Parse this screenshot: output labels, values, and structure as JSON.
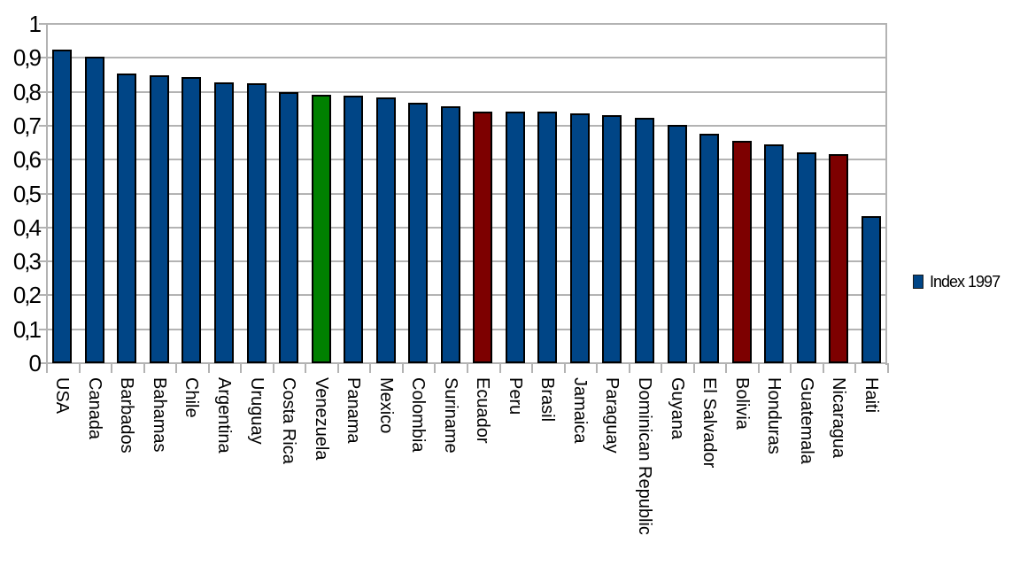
{
  "chart_data": {
    "type": "bar",
    "title": "",
    "xlabel": "",
    "ylabel": "",
    "ylim": [
      0,
      1
    ],
    "grid": "horizontal",
    "ytick_labels": [
      "0",
      "0,1",
      "0,2",
      "0,3",
      "0,4",
      "0,5",
      "0,6",
      "0,7",
      "0,8",
      "0,9",
      "1"
    ],
    "categories": [
      "USA",
      "Canada",
      "Barbados",
      "Bahamas",
      "Chile",
      "Argentina",
      "Uruguay",
      "Costa Rica",
      "Venezuela",
      "Panama",
      "Mexico",
      "Colombia",
      "Suriname",
      "Ecuador",
      "Peru",
      "Brasil",
      "Jamaica",
      "Paraguay",
      "Dominican Republic",
      "Guyana",
      "El Salvador",
      "Bolivia",
      "Honduras",
      "Guatemala",
      "Nicaragua",
      "Haiti"
    ],
    "series": [
      {
        "name": "Index 1997",
        "values": [
          0.925,
          0.904,
          0.855,
          0.849,
          0.844,
          0.827,
          0.826,
          0.799,
          0.79,
          0.788,
          0.784,
          0.768,
          0.757,
          0.742,
          0.742,
          0.742,
          0.736,
          0.73,
          0.724,
          0.703,
          0.676,
          0.655,
          0.644,
          0.622,
          0.616,
          0.433
        ]
      }
    ],
    "bar_colors": [
      "#004586",
      "#004586",
      "#004586",
      "#004586",
      "#004586",
      "#004586",
      "#004586",
      "#004586",
      "#008000",
      "#004586",
      "#004586",
      "#004586",
      "#004586",
      "#7d0000",
      "#004586",
      "#004586",
      "#004586",
      "#004586",
      "#004586",
      "#004586",
      "#004586",
      "#7d0000",
      "#004586",
      "#004586",
      "#7d0000",
      "#004586"
    ],
    "legend": {
      "label": "Index 1997",
      "position": "right",
      "swatch_color": "#004586"
    }
  },
  "colors": {
    "default_bar": "#004586",
    "highlight_green": "#008000",
    "highlight_dark_red": "#7d0000",
    "grid": "#b3b3b3",
    "text": "#000000",
    "background": "#ffffff"
  }
}
